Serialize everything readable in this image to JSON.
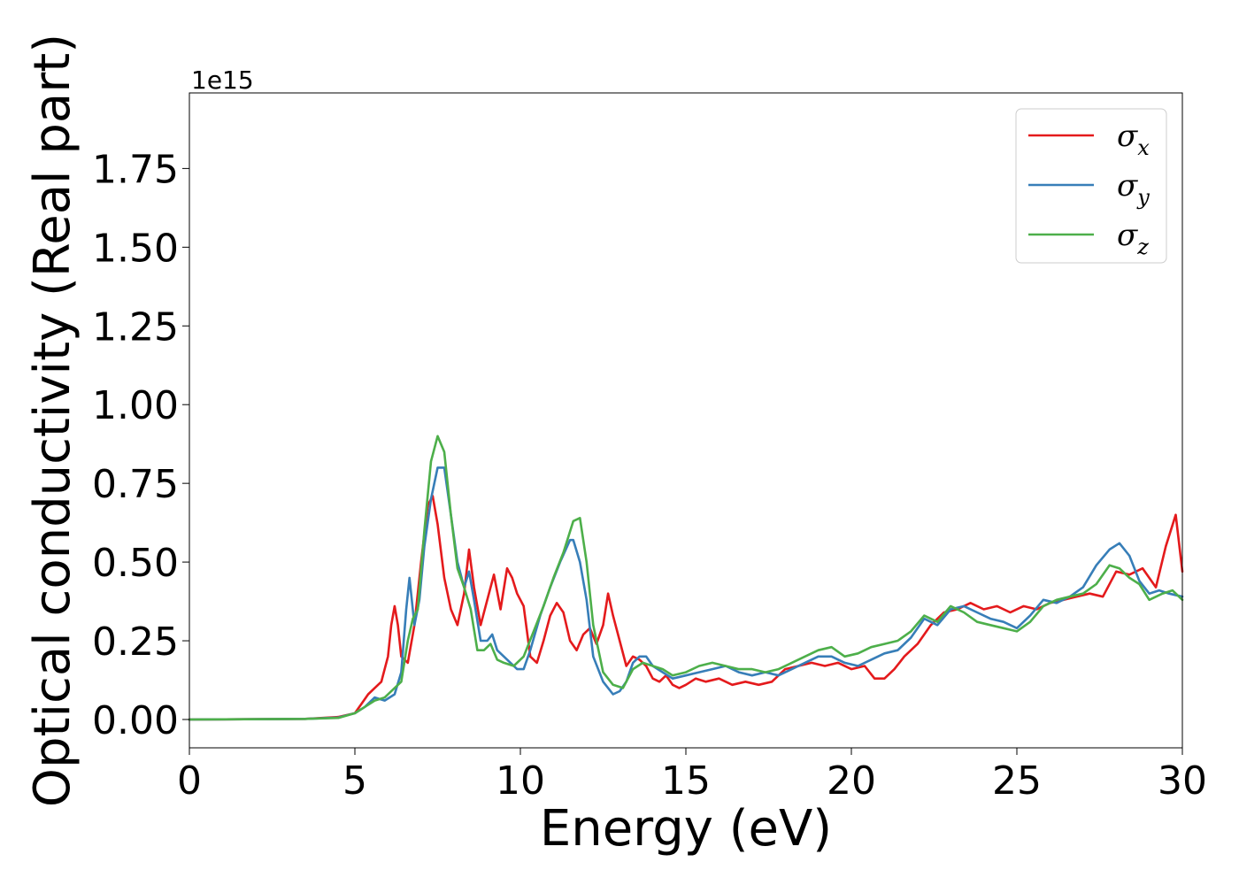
{
  "chart_data": {
    "type": "line",
    "xlabel": "Energy (eV)",
    "ylabel": "Optical conductivity (Real part)",
    "y_offset_label": "1e15",
    "xlim": [
      0,
      30
    ],
    "ylim": [
      -0.09,
      1.99
    ],
    "x_ticks": [
      0,
      5,
      10,
      15,
      20,
      25,
      30
    ],
    "x_tick_labels": [
      "0",
      "5",
      "10",
      "15",
      "20",
      "25",
      "30"
    ],
    "y_ticks": [
      0.0,
      0.25,
      0.5,
      0.75,
      1.0,
      1.25,
      1.5,
      1.75
    ],
    "y_tick_labels": [
      "0.00",
      "0.25",
      "0.50",
      "0.75",
      "1.00",
      "1.25",
      "1.50",
      "1.75"
    ],
    "grid": false,
    "legend_position": "top-right",
    "series": [
      {
        "name": "σx",
        "symbol": "σ",
        "subscript": "x",
        "color": "#e41a1c",
        "x": [
          0,
          3.5,
          4.5,
          5.0,
          5.2,
          5.4,
          5.6,
          5.8,
          6.0,
          6.1,
          6.2,
          6.3,
          6.4,
          6.6,
          6.8,
          7.0,
          7.2,
          7.35,
          7.5,
          7.7,
          7.9,
          8.1,
          8.3,
          8.45,
          8.6,
          8.8,
          9.0,
          9.2,
          9.4,
          9.6,
          9.75,
          9.9,
          10.1,
          10.3,
          10.5,
          10.7,
          10.9,
          11.1,
          11.3,
          11.5,
          11.7,
          11.9,
          12.1,
          12.3,
          12.5,
          12.65,
          12.8,
          13.0,
          13.2,
          13.4,
          13.6,
          13.8,
          14.0,
          14.2,
          14.4,
          14.6,
          14.8,
          15.0,
          15.3,
          15.6,
          16.0,
          16.4,
          16.8,
          17.2,
          17.6,
          18.0,
          18.4,
          18.8,
          19.2,
          19.6,
          20.0,
          20.4,
          20.7,
          21.0,
          21.3,
          21.6,
          22.0,
          22.4,
          22.8,
          23.2,
          23.6,
          24.0,
          24.4,
          24.8,
          25.2,
          25.6,
          26.0,
          26.4,
          26.8,
          27.2,
          27.6,
          28.0,
          28.4,
          28.8,
          29.2,
          29.5,
          29.8,
          30.0
        ],
        "y": [
          0,
          0.002,
          0.008,
          0.02,
          0.05,
          0.08,
          0.1,
          0.12,
          0.2,
          0.3,
          0.36,
          0.3,
          0.2,
          0.18,
          0.3,
          0.5,
          0.68,
          0.71,
          0.62,
          0.45,
          0.35,
          0.3,
          0.4,
          0.54,
          0.42,
          0.3,
          0.38,
          0.46,
          0.35,
          0.48,
          0.45,
          0.4,
          0.36,
          0.2,
          0.18,
          0.25,
          0.33,
          0.37,
          0.34,
          0.25,
          0.22,
          0.27,
          0.29,
          0.24,
          0.3,
          0.4,
          0.33,
          0.25,
          0.17,
          0.2,
          0.19,
          0.17,
          0.13,
          0.12,
          0.14,
          0.11,
          0.1,
          0.11,
          0.13,
          0.12,
          0.13,
          0.11,
          0.12,
          0.11,
          0.12,
          0.16,
          0.17,
          0.18,
          0.17,
          0.18,
          0.16,
          0.17,
          0.13,
          0.13,
          0.16,
          0.2,
          0.24,
          0.3,
          0.34,
          0.35,
          0.37,
          0.35,
          0.36,
          0.34,
          0.36,
          0.35,
          0.37,
          0.38,
          0.39,
          0.4,
          0.39,
          0.47,
          0.46,
          0.48,
          0.42,
          0.55,
          0.65,
          0.47
        ]
      },
      {
        "name": "σy",
        "symbol": "σ",
        "subscript": "y",
        "color": "#377eb8",
        "x": [
          0,
          3.5,
          4.5,
          5.0,
          5.3,
          5.6,
          5.9,
          6.2,
          6.4,
          6.55,
          6.65,
          6.8,
          6.95,
          7.1,
          7.3,
          7.5,
          7.7,
          7.9,
          8.1,
          8.3,
          8.45,
          8.6,
          8.8,
          9.0,
          9.15,
          9.3,
          9.5,
          9.7,
          9.9,
          10.1,
          10.3,
          10.6,
          10.9,
          11.2,
          11.5,
          11.6,
          11.8,
          12.0,
          12.2,
          12.5,
          12.8,
          13.0,
          13.2,
          13.4,
          13.6,
          13.8,
          14.0,
          14.3,
          14.6,
          15.0,
          15.4,
          15.8,
          16.2,
          16.6,
          17.0,
          17.4,
          17.8,
          18.2,
          18.6,
          19.0,
          19.4,
          19.8,
          20.2,
          20.6,
          21.0,
          21.4,
          21.8,
          22.2,
          22.6,
          23.0,
          23.4,
          23.8,
          24.2,
          24.6,
          25.0,
          25.4,
          25.8,
          26.2,
          26.6,
          27.0,
          27.4,
          27.8,
          28.1,
          28.4,
          28.7,
          29.0,
          29.3,
          29.6,
          30.0
        ],
        "y": [
          0,
          0.002,
          0.006,
          0.02,
          0.04,
          0.07,
          0.06,
          0.08,
          0.15,
          0.35,
          0.45,
          0.3,
          0.38,
          0.55,
          0.7,
          0.8,
          0.8,
          0.65,
          0.5,
          0.42,
          0.47,
          0.38,
          0.25,
          0.25,
          0.27,
          0.22,
          0.2,
          0.18,
          0.16,
          0.16,
          0.22,
          0.33,
          0.42,
          0.5,
          0.57,
          0.57,
          0.5,
          0.38,
          0.2,
          0.12,
          0.08,
          0.09,
          0.12,
          0.18,
          0.2,
          0.2,
          0.17,
          0.15,
          0.13,
          0.14,
          0.15,
          0.16,
          0.17,
          0.15,
          0.14,
          0.15,
          0.14,
          0.16,
          0.18,
          0.2,
          0.2,
          0.18,
          0.17,
          0.19,
          0.21,
          0.22,
          0.26,
          0.32,
          0.3,
          0.35,
          0.36,
          0.34,
          0.32,
          0.31,
          0.29,
          0.33,
          0.38,
          0.37,
          0.39,
          0.42,
          0.49,
          0.54,
          0.56,
          0.52,
          0.44,
          0.4,
          0.41,
          0.4,
          0.39
        ]
      },
      {
        "name": "σz",
        "symbol": "σ",
        "subscript": "z",
        "color": "#4daf4a",
        "x": [
          0,
          3.5,
          4.5,
          5.0,
          5.3,
          5.6,
          5.9,
          6.2,
          6.4,
          6.6,
          6.75,
          6.9,
          7.1,
          7.3,
          7.5,
          7.7,
          7.9,
          8.1,
          8.3,
          8.5,
          8.7,
          8.9,
          9.1,
          9.3,
          9.5,
          9.8,
          10.1,
          10.4,
          10.7,
          11.0,
          11.3,
          11.6,
          11.8,
          12.0,
          12.2,
          12.5,
          12.8,
          13.1,
          13.4,
          13.7,
          14.0,
          14.3,
          14.6,
          15.0,
          15.4,
          15.8,
          16.2,
          16.6,
          17.0,
          17.4,
          17.8,
          18.2,
          18.6,
          19.0,
          19.4,
          19.8,
          20.2,
          20.6,
          21.0,
          21.4,
          21.8,
          22.2,
          22.6,
          23.0,
          23.4,
          23.8,
          24.2,
          24.6,
          25.0,
          25.4,
          25.8,
          26.2,
          26.6,
          27.0,
          27.4,
          27.8,
          28.1,
          28.4,
          28.7,
          29.0,
          29.4,
          29.7,
          30.0
        ],
        "y": [
          0,
          0.002,
          0.005,
          0.02,
          0.04,
          0.06,
          0.07,
          0.1,
          0.12,
          0.25,
          0.32,
          0.35,
          0.6,
          0.82,
          0.9,
          0.85,
          0.65,
          0.48,
          0.42,
          0.35,
          0.22,
          0.22,
          0.24,
          0.19,
          0.18,
          0.17,
          0.2,
          0.28,
          0.36,
          0.45,
          0.53,
          0.63,
          0.64,
          0.5,
          0.3,
          0.15,
          0.11,
          0.1,
          0.16,
          0.18,
          0.17,
          0.16,
          0.14,
          0.15,
          0.17,
          0.18,
          0.17,
          0.16,
          0.16,
          0.15,
          0.16,
          0.18,
          0.2,
          0.22,
          0.23,
          0.2,
          0.21,
          0.23,
          0.24,
          0.25,
          0.28,
          0.33,
          0.31,
          0.36,
          0.34,
          0.31,
          0.3,
          0.29,
          0.28,
          0.31,
          0.36,
          0.38,
          0.39,
          0.4,
          0.43,
          0.49,
          0.48,
          0.45,
          0.43,
          0.38,
          0.4,
          0.41,
          0.38
        ]
      }
    ]
  }
}
